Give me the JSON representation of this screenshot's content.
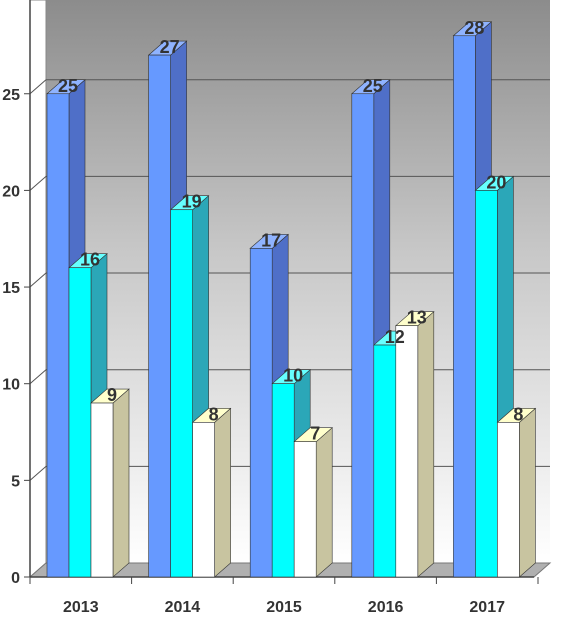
{
  "chart_data": {
    "type": "bar",
    "title": "",
    "xlabel": "",
    "ylabel": "",
    "categories": [
      "2013",
      "2014",
      "2015",
      "2016",
      "2017"
    ],
    "series": [
      {
        "values": [
          25,
          27,
          17,
          25,
          28
        ],
        "color": "#6699ff",
        "side_color": "#4f6fc8",
        "top_color": "#8fb3ff"
      },
      {
        "values": [
          16,
          19,
          10,
          12,
          20
        ],
        "color": "#00ffff",
        "side_color": "#2ba7b8",
        "top_color": "#66ffff"
      },
      {
        "values": [
          9,
          8,
          7,
          13,
          8
        ],
        "color": "#ffffff",
        "side_color": "#c8c4a0",
        "top_color": "#ffffcc"
      }
    ],
    "y_ticks": [
      "0",
      "5",
      "10",
      "15",
      "20",
      "25"
    ],
    "ylim": [
      0,
      30
    ],
    "grid": true,
    "legend": "none"
  }
}
